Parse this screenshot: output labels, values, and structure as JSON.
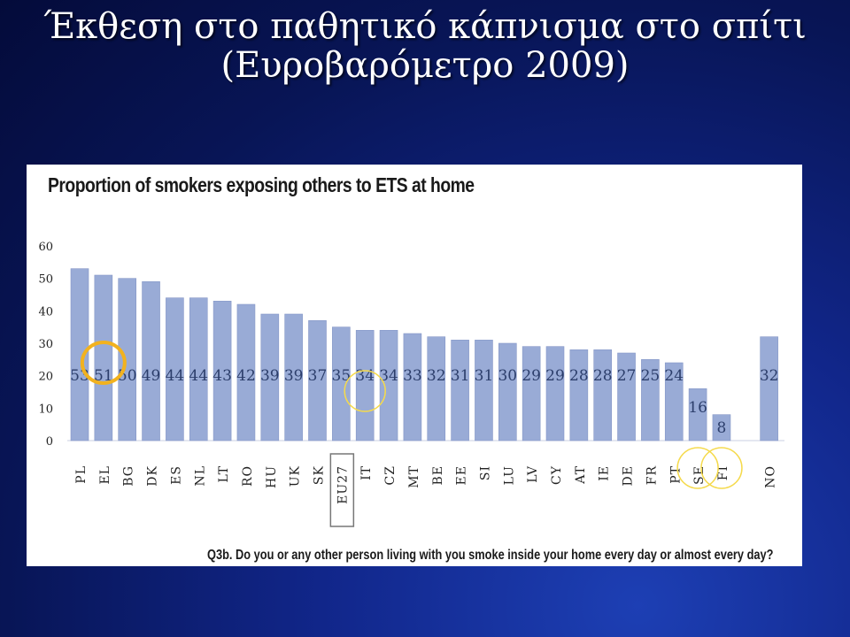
{
  "slide": {
    "title_line1": "Έκθεση στο παθητικό κάπνισμα στο σπίτι",
    "title_line2": "(Ευροβαρόμετρο  2009)"
  },
  "colors": {
    "bar": "#99abd6",
    "bar_stroke": "#8597c6",
    "highlight_orange": "#f2b21f",
    "highlight_yellow": "#f5da4c",
    "eu27_box": "#777777"
  },
  "chart_data": {
    "type": "bar",
    "title": "Proportion of smokers exposing others to ETS at home",
    "question": "Q3b. Do you or any other person living with you smoke inside your home every day or almost every day?",
    "categories": [
      "PL",
      "EL",
      "BG",
      "DK",
      "ES",
      "NL",
      "LT",
      "RO",
      "HU",
      "UK",
      "SK",
      "EU27",
      "IT",
      "CZ",
      "MT",
      "BE",
      "EE",
      "SI",
      "LU",
      "LV",
      "CY",
      "AT",
      "IE",
      "DE",
      "FR",
      "PT",
      "SE",
      "FI",
      "",
      "NO"
    ],
    "values": [
      53,
      51,
      50,
      49,
      44,
      44,
      43,
      42,
      39,
      39,
      37,
      35,
      34,
      34,
      33,
      32,
      31,
      31,
      30,
      29,
      29,
      28,
      28,
      27,
      25,
      24,
      16,
      8,
      null,
      32
    ],
    "ylim": [
      0,
      60
    ],
    "yticks": [
      0,
      10,
      20,
      30,
      40,
      50,
      60
    ],
    "grid": false,
    "legend": "none",
    "highlights": [
      {
        "category": "EL",
        "style": "orange-circle"
      },
      {
        "category": "EU27",
        "style": "box"
      },
      {
        "category": "IT",
        "style": "yellow-circle"
      },
      {
        "category": "SE",
        "style": "yellow-circle"
      },
      {
        "category": "FI",
        "style": "yellow-circle"
      }
    ]
  }
}
